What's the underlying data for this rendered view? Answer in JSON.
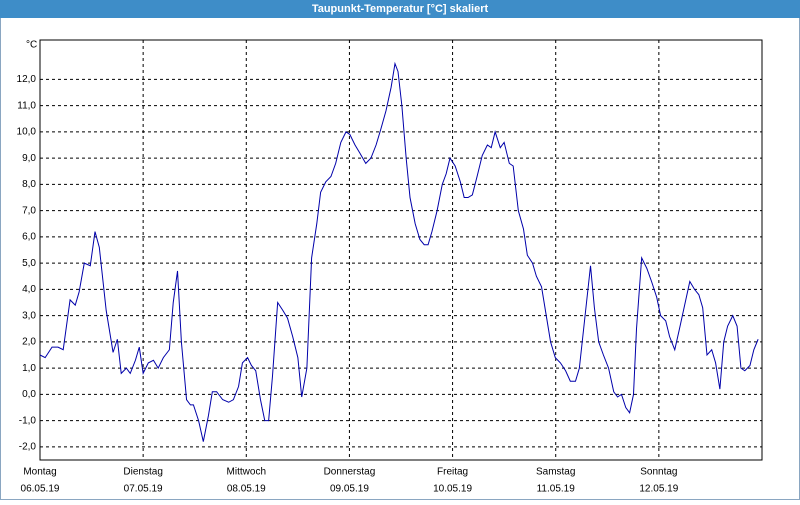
{
  "chart_data": {
    "type": "line",
    "title": "Taupunkt-Temperatur [°C] skaliert",
    "y_label": "°C",
    "color": "#0000aa",
    "grid": true,
    "xlim": [
      0,
      168
    ],
    "xticks": [
      {
        "value": 0,
        "label": "Montag",
        "date": "06.05.19"
      },
      {
        "value": 24,
        "label": "Dienstag",
        "date": "07.05.19"
      },
      {
        "value": 48,
        "label": "Mittwoch",
        "date": "08.05.19"
      },
      {
        "value": 72,
        "label": "Donnerstag",
        "date": "09.05.19"
      },
      {
        "value": 96,
        "label": "Freitag",
        "date": "10.05.19"
      },
      {
        "value": 120,
        "label": "Samstag",
        "date": "11.05.19"
      },
      {
        "value": 144,
        "label": "Sonntag",
        "date": "12.05.19"
      }
    ],
    "ylim": [
      -2.5,
      13.5
    ],
    "yticks": [
      {
        "value": -2,
        "label": "-2,0"
      },
      {
        "value": -1,
        "label": "-1,0"
      },
      {
        "value": 0,
        "label": "0,0"
      },
      {
        "value": 1,
        "label": "1,0"
      },
      {
        "value": 2,
        "label": "2,0"
      },
      {
        "value": 3,
        "label": "3,0"
      },
      {
        "value": 4,
        "label": "4,0"
      },
      {
        "value": 5,
        "label": "5,0"
      },
      {
        "value": 6,
        "label": "6,0"
      },
      {
        "value": 7,
        "label": "7,0"
      },
      {
        "value": 8,
        "label": "8,0"
      },
      {
        "value": 9,
        "label": "9,0"
      },
      {
        "value": 10,
        "label": "10,0"
      },
      {
        "value": 11,
        "label": "11,0"
      },
      {
        "value": 12,
        "label": "12,0"
      }
    ],
    "x": [
      0,
      1.2,
      2.8,
      4.2,
      5.4,
      7.0,
      8.2,
      9.1,
      10.3,
      11.7,
      12.8,
      13.8,
      15.4,
      17.0,
      18.0,
      18.9,
      20.1,
      21.0,
      22.2,
      23.1,
      24.0,
      25.2,
      26.4,
      27.5,
      28.7,
      30.1,
      31.0,
      32.0,
      32.9,
      34.1,
      35.0,
      35.7,
      36.9,
      38.0,
      39.2,
      40.1,
      41.1,
      42.5,
      43.9,
      45.0,
      46.2,
      47.1,
      48.3,
      49.2,
      50.2,
      51.3,
      52.3,
      53.2,
      54.1,
      55.3,
      56.5,
      57.6,
      58.8,
      60.0,
      60.9,
      62.1,
      63.2,
      64.4,
      65.3,
      66.5,
      67.7,
      68.8,
      70.0,
      71.2,
      72.1,
      73.3,
      74.4,
      75.8,
      77.0,
      78.2,
      79.3,
      80.5,
      81.7,
      82.6,
      83.3,
      84.2,
      85.2,
      86.1,
      87.3,
      88.4,
      89.4,
      90.3,
      91.2,
      92.4,
      93.6,
      94.5,
      95.4,
      96.6,
      97.8,
      98.7,
      99.6,
      100.6,
      101.7,
      102.9,
      104.1,
      105.0,
      105.9,
      107.1,
      108.0,
      109.2,
      110.1,
      111.3,
      112.5,
      113.4,
      114.6,
      115.5,
      116.7,
      117.8,
      118.8,
      119.9,
      121.1,
      122.3,
      123.4,
      124.6,
      125.5,
      126.7,
      128.1,
      129.0,
      130.0,
      131.1,
      132.3,
      133.5,
      134.4,
      135.3,
      136.3,
      137.2,
      138.1,
      138.8,
      140.0,
      141.2,
      142.3,
      143.5,
      144.4,
      145.6,
      146.5,
      147.7,
      148.8,
      150.0,
      151.2,
      152.3,
      153.3,
      154.2,
      155.2,
      156.3,
      157.2,
      158.2,
      159.1,
      160.0,
      161.2,
      162.2,
      163.1,
      164.0,
      165.2,
      166.1,
      167.1
    ],
    "values": [
      1.5,
      1.4,
      1.8,
      1.8,
      1.7,
      3.6,
      3.4,
      3.9,
      5.0,
      4.9,
      6.2,
      5.6,
      3.2,
      1.6,
      2.1,
      0.8,
      1.0,
      0.8,
      1.3,
      1.8,
      0.8,
      1.2,
      1.3,
      1.0,
      1.4,
      1.7,
      3.5,
      4.7,
      2.0,
      -0.2,
      -0.4,
      -0.4,
      -1.0,
      -1.8,
      -0.8,
      0.1,
      0.1,
      -0.2,
      -0.3,
      -0.2,
      0.3,
      1.2,
      1.4,
      1.1,
      0.9,
      -0.2,
      -1.0,
      -1.0,
      0.7,
      3.5,
      3.2,
      2.9,
      2.2,
      1.4,
      -0.1,
      1.0,
      5.2,
      6.5,
      7.7,
      8.1,
      8.3,
      8.8,
      9.6,
      10.0,
      9.9,
      9.5,
      9.2,
      8.8,
      9.0,
      9.5,
      10.1,
      10.8,
      11.7,
      12.6,
      12.3,
      11.0,
      9.0,
      7.5,
      6.5,
      5.9,
      5.7,
      5.7,
      6.2,
      7.0,
      8.0,
      8.4,
      9.0,
      8.7,
      8.1,
      7.5,
      7.5,
      7.6,
      8.3,
      9.1,
      9.5,
      9.4,
      10.0,
      9.4,
      9.6,
      8.8,
      8.7,
      7.0,
      6.3,
      5.3,
      5.0,
      4.5,
      4.1,
      3.0,
      2.0,
      1.4,
      1.2,
      0.9,
      0.5,
      0.5,
      1.0,
      2.8,
      4.9,
      3.3,
      2.0,
      1.5,
      1.0,
      0.1,
      -0.1,
      0.0,
      -0.5,
      -0.7,
      0.0,
      2.5,
      5.2,
      4.8,
      4.3,
      3.7,
      3.0,
      2.8,
      2.2,
      1.7,
      2.5,
      3.4,
      4.3,
      4.0,
      3.8,
      3.3,
      1.5,
      1.7,
      1.2,
      0.2,
      2.0,
      2.6,
      3.0,
      2.6,
      1.0,
      0.9,
      1.1,
      1.7,
      2.1
    ]
  }
}
